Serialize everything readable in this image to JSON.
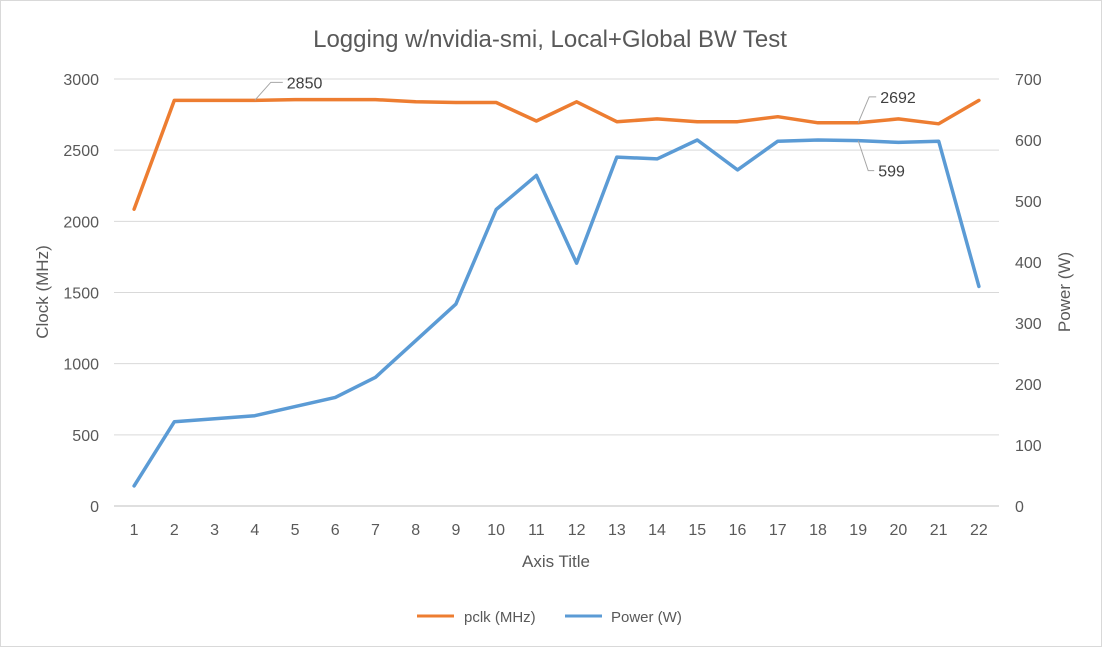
{
  "chart_data": {
    "type": "line",
    "title": "Logging w/nvidia-smi, Local+Global BW Test",
    "xlabel": "Axis Title",
    "ylabel_left": "Clock (MHz)",
    "ylabel_right": "Power (W)",
    "categories": [
      "1",
      "2",
      "3",
      "4",
      "5",
      "6",
      "7",
      "8",
      "9",
      "10",
      "11",
      "12",
      "13",
      "14",
      "15",
      "16",
      "17",
      "18",
      "19",
      "20",
      "21",
      "22"
    ],
    "ylim_left": [
      0,
      3000
    ],
    "yticks_left": [
      0,
      500,
      1000,
      1500,
      2000,
      2500,
      3000
    ],
    "ylim_right": [
      0,
      700
    ],
    "yticks_right": [
      0,
      100,
      200,
      300,
      400,
      500,
      600,
      700
    ],
    "grid": true,
    "legend_position": "bottom",
    "series": [
      {
        "name": "pclk (MHz)",
        "axis": "left",
        "color": "#ed7d31",
        "values": [
          2085,
          2850,
          2850,
          2850,
          2855,
          2855,
          2855,
          2840,
          2835,
          2835,
          2705,
          2840,
          2700,
          2720,
          2700,
          2700,
          2735,
          2692,
          2692,
          2720,
          2685,
          2850
        ]
      },
      {
        "name": "Power (W)",
        "axis": "right",
        "color": "#5b9bd5",
        "values": [
          33,
          138,
          143,
          148,
          163,
          178,
          211,
          271,
          331,
          486,
          542,
          398,
          572,
          569,
          600,
          551,
          598,
          600,
          599,
          596,
          598,
          360
        ]
      }
    ],
    "annotations": [
      {
        "text": "2850",
        "series": "pclk (MHz)",
        "index": 3
      },
      {
        "text": "2692",
        "series": "pclk (MHz)",
        "index": 18
      },
      {
        "text": "599",
        "series": "Power (W)",
        "index": 18
      }
    ]
  }
}
